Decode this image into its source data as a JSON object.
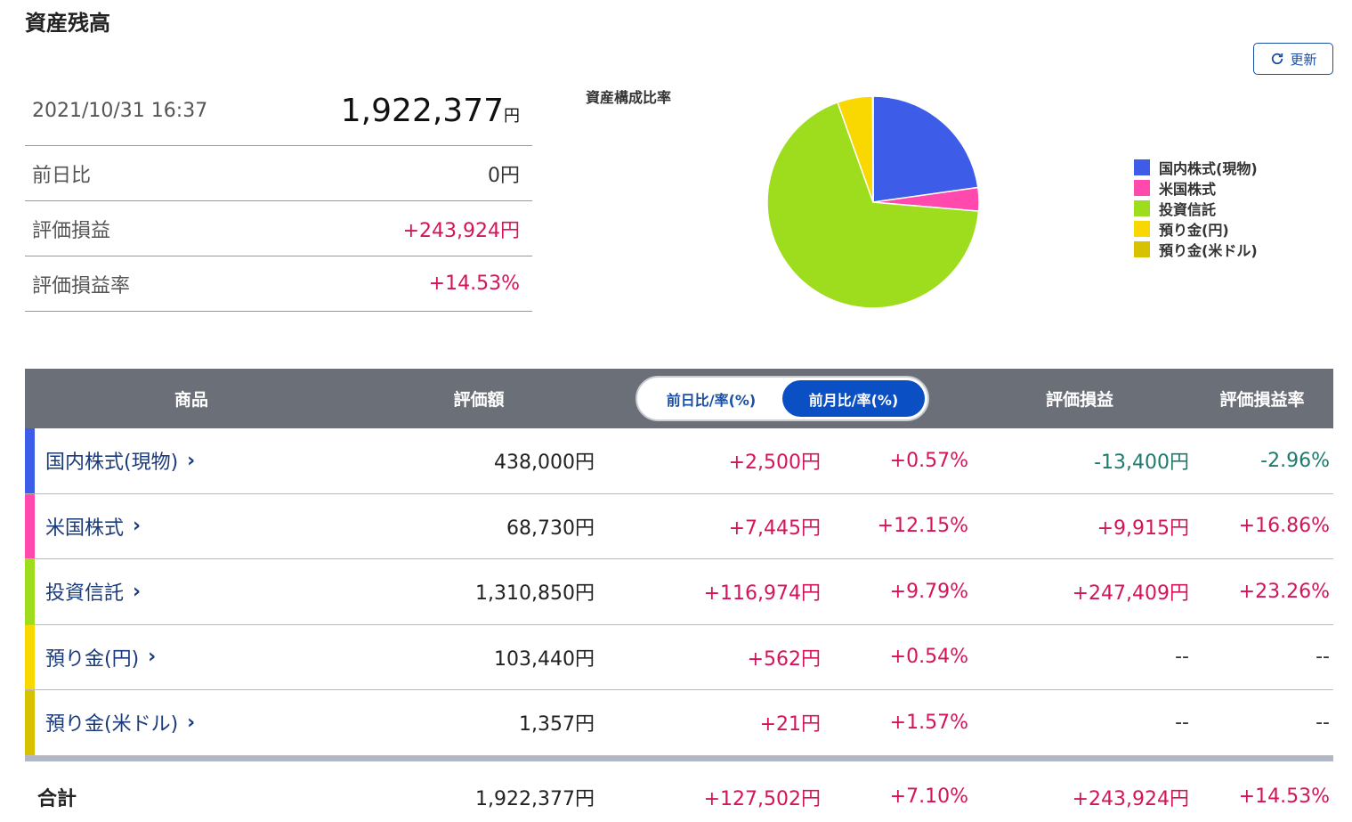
{
  "header": {
    "title": "資産残高",
    "refresh_label": "更新"
  },
  "summary": {
    "datetime": "2021/10/31 16:37",
    "total_value": "1,922,377",
    "total_unit": "円",
    "rows": [
      {
        "label": "前日比",
        "value": "0円"
      },
      {
        "label": "評価損益",
        "value": "+243,924円"
      },
      {
        "label": "評価損益率",
        "value": "+14.53%"
      }
    ]
  },
  "chart_data": {
    "type": "pie",
    "title": "資産構成比率",
    "legend_position": "right",
    "slices": [
      {
        "label": "国内株式(現物)",
        "value": 438000,
        "color": "#3d5ce8"
      },
      {
        "label": "米国株式",
        "value": 68730,
        "color": "#ff49ac"
      },
      {
        "label": "投資信託",
        "value": 1310850,
        "color": "#9edc1e"
      },
      {
        "label": "預り金(円)",
        "value": 103440,
        "color": "#f8d800"
      },
      {
        "label": "預り金(米ドル)",
        "value": 1357,
        "color": "#d6c200"
      }
    ]
  },
  "table": {
    "headers": {
      "product": "商品",
      "amount": "評価額",
      "toggle_day": "前日比/率(%)",
      "toggle_month": "前月比/率(%)",
      "pl": "評価損益",
      "pl_rate": "評価損益率"
    },
    "rows": [
      {
        "name": "国内株式(現物)",
        "amount": "438,000円",
        "chg": "+2,500円",
        "rate": "+0.57%",
        "pl": "-13,400円",
        "pl_rate": "-2.96%",
        "color": "#3d5ce8"
      },
      {
        "name": "米国株式",
        "amount": "68,730円",
        "chg": "+7,445円",
        "rate": "+12.15%",
        "pl": "+9,915円",
        "pl_rate": "+16.86%",
        "color": "#ff49ac"
      },
      {
        "name": "投資信託",
        "amount": "1,310,850円",
        "chg": "+116,974円",
        "rate": "+9.79%",
        "pl": "+247,409円",
        "pl_rate": "+23.26%",
        "color": "#9edc1e"
      },
      {
        "name": "預り金(円)",
        "amount": "103,440円",
        "chg": "+562円",
        "rate": "+0.54%",
        "pl": "--",
        "pl_rate": "--",
        "color": "#f8d800"
      },
      {
        "name": "預り金(米ドル)",
        "amount": "1,357円",
        "chg": "+21円",
        "rate": "+1.57%",
        "pl": "--",
        "pl_rate": "--",
        "color": "#d6c200"
      }
    ],
    "total": {
      "label": "合計",
      "amount": "1,922,377円",
      "chg": "+127,502円",
      "rate": "+7.10%",
      "pl": "+243,924円",
      "pl_rate": "+14.53%"
    }
  }
}
